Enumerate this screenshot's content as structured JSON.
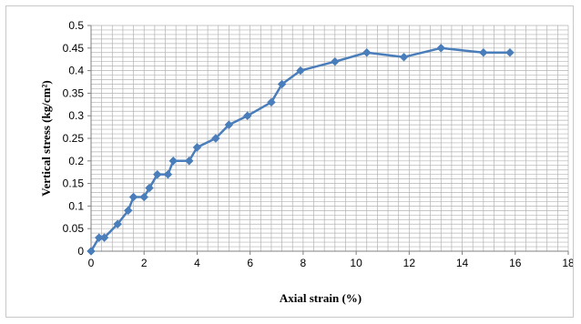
{
  "chart_data": {
    "type": "line",
    "title": "",
    "xlabel": "Axial strain (%)",
    "ylabel": "Vertical stress (kg/cm²)",
    "xlim": [
      0,
      18
    ],
    "ylim": [
      0,
      0.5
    ],
    "x_ticks": [
      0,
      2,
      4,
      6,
      8,
      10,
      12,
      14,
      16,
      18
    ],
    "y_ticks": [
      0,
      0.05,
      0.1,
      0.15,
      0.2,
      0.25,
      0.3,
      0.35,
      0.4,
      0.45,
      0.5
    ],
    "x_tick_labels": [
      "0",
      "2",
      "4",
      "6",
      "8",
      "10",
      "12",
      "14",
      "16",
      "18"
    ],
    "y_tick_labels": [
      "0",
      "0.05",
      "0.1",
      "0.15",
      "0.2",
      "0.25",
      "0.3",
      "0.35",
      "0.4",
      "0.45",
      "0.5"
    ],
    "grid": true,
    "grid_minor_x_per_major": 5,
    "grid_minor_y_per_major": 5,
    "legend": "none",
    "series": [
      {
        "color": "#4a7ebb",
        "marker": "diamond",
        "x": [
          0,
          0.3,
          0.5,
          1.0,
          1.4,
          1.6,
          2.0,
          2.2,
          2.5,
          2.9,
          3.1,
          3.7,
          4.0,
          4.7,
          5.2,
          5.9,
          6.8,
          7.2,
          7.9,
          9.2,
          10.4,
          11.8,
          13.2,
          14.8,
          15.8
        ],
        "y": [
          0,
          0.03,
          0.03,
          0.06,
          0.09,
          0.12,
          0.12,
          0.14,
          0.17,
          0.17,
          0.2,
          0.2,
          0.23,
          0.25,
          0.28,
          0.3,
          0.33,
          0.37,
          0.4,
          0.42,
          0.44,
          0.43,
          0.45,
          0.44,
          0.44
        ]
      }
    ]
  },
  "colors": {
    "line": "#4a7ebb",
    "grid": "#b3b3b3",
    "axis": "#808080"
  }
}
